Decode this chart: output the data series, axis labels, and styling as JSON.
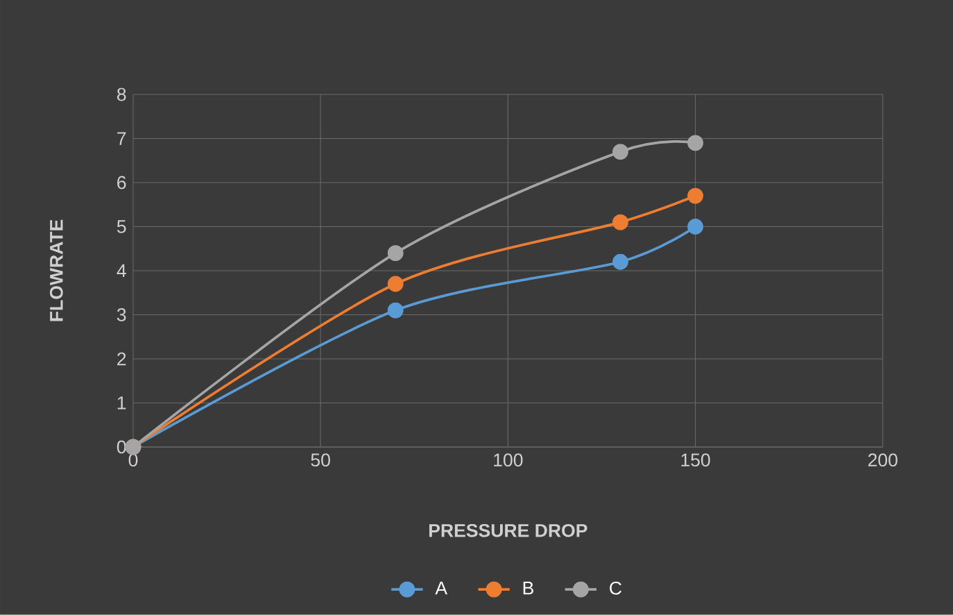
{
  "chart_data": {
    "type": "line",
    "xlabel": "PRESSURE DROP",
    "ylabel": "FLOWRATE",
    "x": [
      0,
      70,
      130,
      150
    ],
    "series": [
      {
        "name": "A",
        "color": "#5b9bd5",
        "values": [
          0,
          3.1,
          4.2,
          5.0
        ]
      },
      {
        "name": "B",
        "color": "#ed7d31",
        "values": [
          0,
          3.7,
          5.1,
          5.7
        ]
      },
      {
        "name": "C",
        "color": "#a5a5a5",
        "values": [
          0,
          4.4,
          6.7,
          6.9
        ]
      }
    ],
    "xlim": [
      0,
      200
    ],
    "ylim": [
      0,
      8
    ],
    "xticks": [
      0,
      50,
      100,
      150,
      200
    ],
    "yticks": [
      0,
      1,
      2,
      3,
      4,
      5,
      6,
      7,
      8
    ],
    "grid": true,
    "legend": "bottom",
    "marker": "circle",
    "line_style": "solid"
  }
}
